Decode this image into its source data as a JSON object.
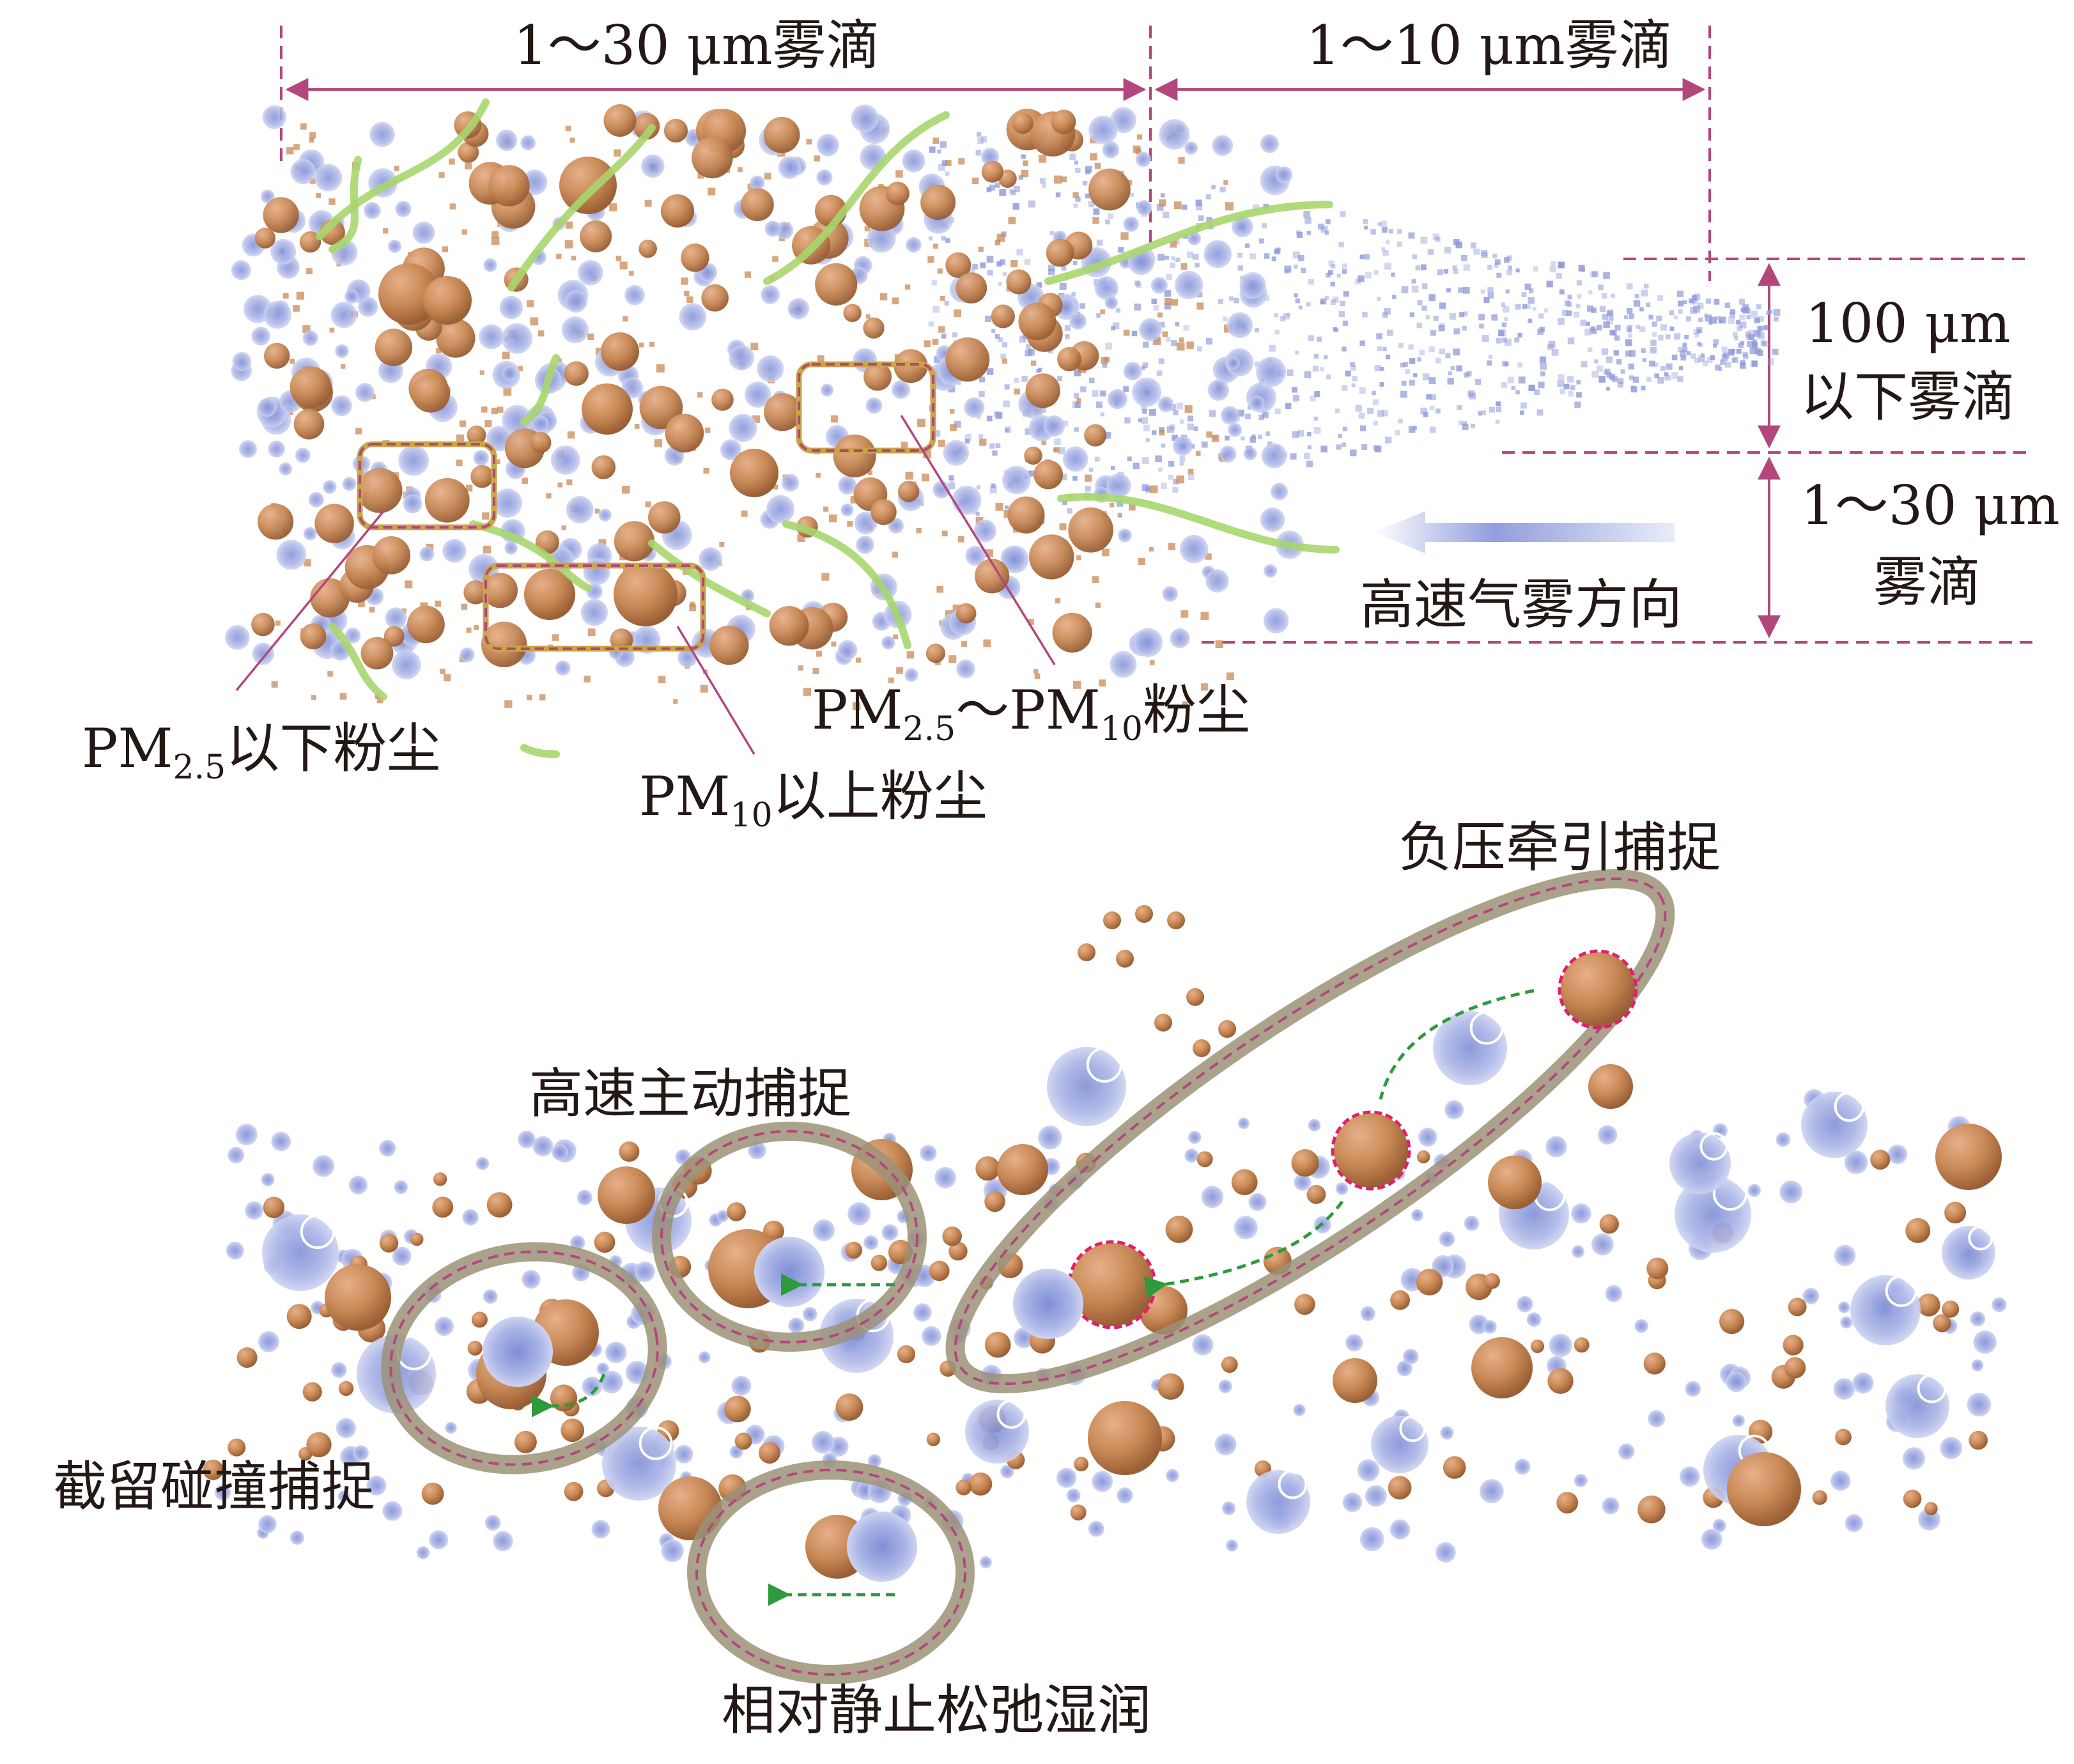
{
  "top_panel": {
    "dim_left": "1～30 μm雾滴",
    "dim_right": "1～10 μm雾滴",
    "right_upper": [
      "100 μm",
      "以下雾滴"
    ],
    "right_lower": [
      "1～30 μm",
      "雾滴"
    ],
    "flow_label": "高速气雾方向",
    "dust_fine": {
      "pm": "PM",
      "sub": "2.5",
      "text": "以下粉尘"
    },
    "dust_mid": {
      "pm1": "PM",
      "sub1": "2.5",
      "tilde": "～PM",
      "sub2": "10",
      "text": "粉尘"
    },
    "dust_coarse": {
      "pm": "PM",
      "sub": "10",
      "text": "以上粉尘"
    }
  },
  "bottom_panel": {
    "mech_negative_pressure": "负压牵引捕捉",
    "mech_high_speed": "高速主动捕捉",
    "mech_interception": "截留碰撞捕捉",
    "mech_relaxation": "相对静止松弛湿润"
  },
  "colors": {
    "dust": "#c98a57",
    "droplet": "#a9b3e6",
    "fiber": "#a9d66e",
    "dimension": "#b3477d",
    "capture_arrow": "#2e9a3c",
    "ring": "#9c9278"
  }
}
